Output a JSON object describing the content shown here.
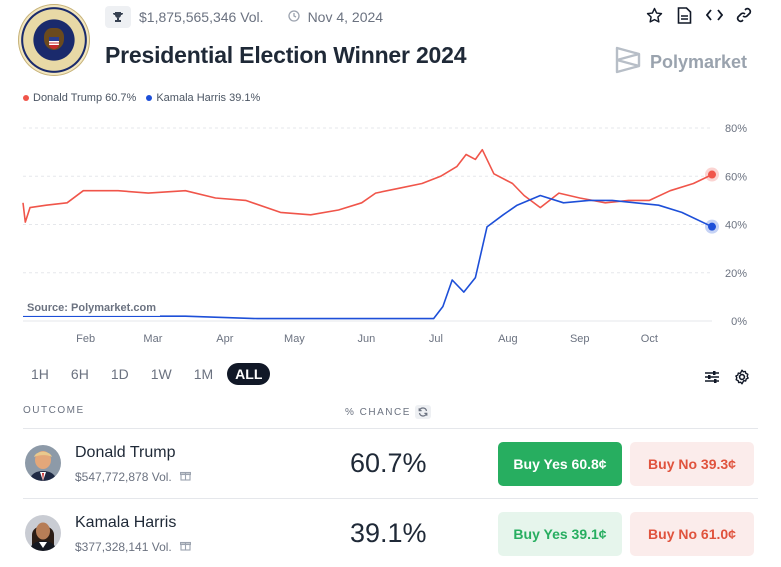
{
  "market": {
    "volume": "$1,875,565,346 Vol.",
    "end_date": "Nov 4, 2024",
    "title": "Presidential Election Winner 2024",
    "brand": "Polymarket"
  },
  "legend": [
    {
      "label": "Donald Trump 60.7%",
      "color": "#f0554a"
    },
    {
      "label": "Kamala Harris 39.1%",
      "color": "#1d4fd8"
    }
  ],
  "source": "Source: Polymarket.com",
  "time_ranges": [
    "1H",
    "6H",
    "1D",
    "1W",
    "1M",
    "ALL"
  ],
  "active_range": "ALL",
  "table": {
    "col_outcome": "OUTCOME",
    "col_chance": "% CHANCE",
    "rows": [
      {
        "name": "Donald Trump",
        "volume": "$547,772,878 Vol.",
        "chance": "60.7%",
        "yes": "Buy Yes 60.8¢",
        "no": "Buy No 39.3¢"
      },
      {
        "name": "Kamala Harris",
        "volume": "$377,328,141 Vol.",
        "chance": "39.1%",
        "yes": "Buy Yes 39.1¢",
        "no": "Buy No 61.0¢"
      }
    ]
  },
  "chart_data": {
    "type": "line",
    "x_ticks": [
      "Feb",
      "Mar",
      "Apr",
      "May",
      "Jun",
      "Jul",
      "Aug",
      "Sep",
      "Oct"
    ],
    "y_ticks": [
      "80%",
      "60%",
      "40%",
      "20%",
      "0%"
    ],
    "ylim": [
      0,
      80
    ],
    "grid": true,
    "legend_position": "top-left",
    "series": [
      {
        "name": "Donald Trump",
        "color": "#f0554a",
        "points": [
          [
            "2024-01-05",
            49
          ],
          [
            "2024-01-06",
            41
          ],
          [
            "2024-01-08",
            47
          ],
          [
            "2024-01-15",
            48
          ],
          [
            "2024-01-24",
            49
          ],
          [
            "2024-01-31",
            54
          ],
          [
            "2024-02-15",
            54
          ],
          [
            "2024-02-28",
            53
          ],
          [
            "2024-03-15",
            54
          ],
          [
            "2024-03-28",
            51
          ],
          [
            "2024-04-10",
            50
          ],
          [
            "2024-04-25",
            45
          ],
          [
            "2024-05-08",
            44
          ],
          [
            "2024-05-20",
            46
          ],
          [
            "2024-05-30",
            49
          ],
          [
            "2024-06-05",
            53
          ],
          [
            "2024-06-15",
            55
          ],
          [
            "2024-06-25",
            57
          ],
          [
            "2024-07-03",
            60
          ],
          [
            "2024-07-10",
            64
          ],
          [
            "2024-07-14",
            69
          ],
          [
            "2024-07-18",
            67
          ],
          [
            "2024-07-21",
            71
          ],
          [
            "2024-07-26",
            61
          ],
          [
            "2024-08-03",
            57
          ],
          [
            "2024-08-08",
            52
          ],
          [
            "2024-08-15",
            47
          ],
          [
            "2024-08-23",
            53
          ],
          [
            "2024-09-01",
            51
          ],
          [
            "2024-09-12",
            49
          ],
          [
            "2024-09-22",
            50
          ],
          [
            "2024-10-01",
            50
          ],
          [
            "2024-10-10",
            54
          ],
          [
            "2024-10-20",
            57
          ],
          [
            "2024-10-28",
            60.7
          ]
        ]
      },
      {
        "name": "Kamala Harris",
        "color": "#1d4fd8",
        "points": [
          [
            "2024-01-05",
            2
          ],
          [
            "2024-02-15",
            2
          ],
          [
            "2024-03-15",
            2
          ],
          [
            "2024-04-15",
            1
          ],
          [
            "2024-05-15",
            1
          ],
          [
            "2024-06-15",
            1
          ],
          [
            "2024-06-30",
            1
          ],
          [
            "2024-07-04",
            6
          ],
          [
            "2024-07-08",
            17
          ],
          [
            "2024-07-13",
            12
          ],
          [
            "2024-07-18",
            18
          ],
          [
            "2024-07-23",
            39
          ],
          [
            "2024-07-30",
            44
          ],
          [
            "2024-08-05",
            48
          ],
          [
            "2024-08-15",
            52
          ],
          [
            "2024-08-25",
            49
          ],
          [
            "2024-09-05",
            50
          ],
          [
            "2024-09-15",
            50
          ],
          [
            "2024-09-25",
            49
          ],
          [
            "2024-10-05",
            48
          ],
          [
            "2024-10-15",
            45
          ],
          [
            "2024-10-28",
            39.1
          ]
        ]
      }
    ]
  }
}
